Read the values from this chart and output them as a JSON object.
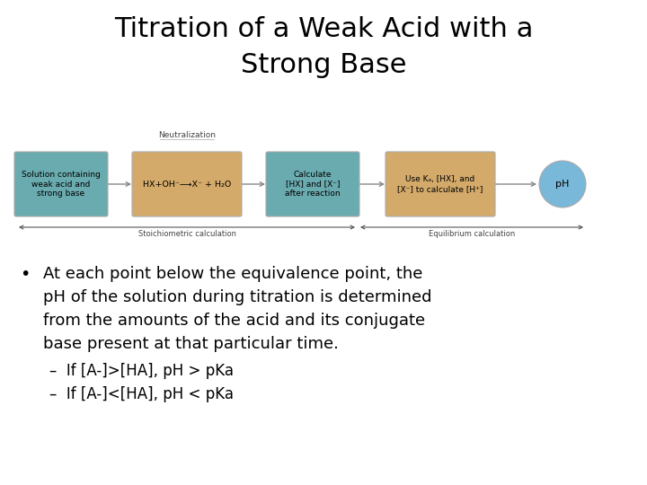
{
  "title_line1": "Titration of a Weak Acid with a",
  "title_line2": "Strong Base",
  "title_fontsize": 22,
  "title_color": "#000000",
  "background_color": "#ffffff",
  "box1_text": "Solution containing\nweak acid and\nstrong base",
  "box1_color": "#6aabaf",
  "box2_text": "HX+OH⁻⟶X⁻ + H₂O",
  "box2_color": "#d4aa6a",
  "box3_text": "Calculate\n[HX] and [X⁻]\nafter reaction",
  "box3_color": "#6aabaf",
  "box4_text": "Use Kₐ, [HX], and\n[X⁻] to calculate [H⁺]",
  "box4_color": "#d4aa6a",
  "ellipse_text": "pH",
  "ellipse_color": "#7ab8d9",
  "neutralization_text": "Neutralization",
  "stoich_text": "Stoichiometric calculation",
  "equil_text": "Equilibrium calculation",
  "bullet_line1": "At each point below the equivalence point, the",
  "bullet_line2": "pH of the solution during titration is determined",
  "bullet_line3": "from the amounts of the acid and its conjugate",
  "bullet_line4": "base present at that particular time.",
  "sub1": "–  If [A-]>[HA], pH > pKa",
  "sub2": "–  If [A-]<[HA], pH < pKa",
  "text_color": "#000000",
  "arrow_color": "#888888",
  "bracket_color": "#555555",
  "label_color": "#444444"
}
